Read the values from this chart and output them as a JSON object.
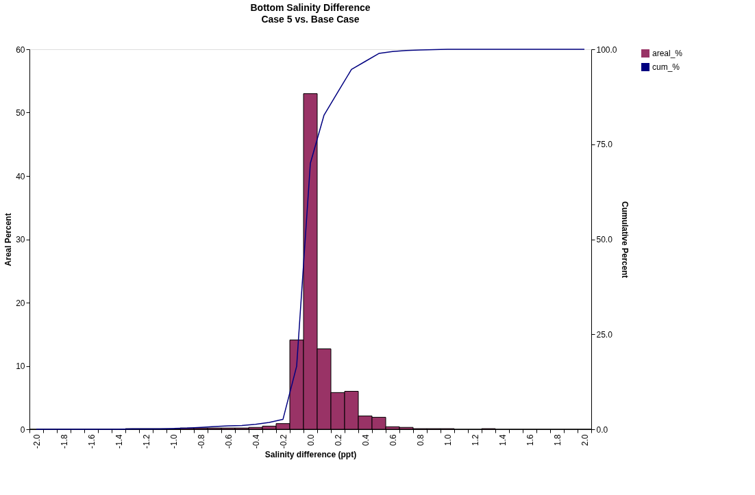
{
  "chart_data": {
    "type": "bar",
    "title": "Bottom Salinity Difference",
    "subtitle": "Case 5 vs. Base Case",
    "xlabel": "Salinity difference (ppt)",
    "ylabel": "Areal Percent",
    "y2label": "Cumulative Percent",
    "categories": [
      "-2.0",
      null,
      "-1.8",
      null,
      "-1.6",
      null,
      "-1.4",
      null,
      "-1.2",
      null,
      "-1.0",
      null,
      "-0.8",
      null,
      "-0.6",
      null,
      "-0.4",
      null,
      "-0.2",
      null,
      "0.0",
      null,
      "0.2",
      null,
      "0.4",
      null,
      "0.6",
      null,
      "0.8",
      null,
      "1.0",
      null,
      "1.2",
      null,
      "1.4",
      null,
      "1.6",
      null,
      "1.8",
      null,
      "2.0"
    ],
    "series": [
      {
        "name": "areal_%",
        "color": "#993366",
        "values": [
          0,
          0,
          0,
          0,
          0,
          0,
          0,
          0.1,
          0.1,
          0.1,
          0.1,
          0.2,
          0.2,
          0.2,
          0.2,
          0.2,
          0.3,
          0.5,
          0.9,
          14.1,
          53.0,
          12.7,
          5.8,
          6.0,
          2.1,
          1.9,
          0.4,
          0.3,
          0.1,
          0.1,
          0.1,
          0,
          0,
          0.1,
          0,
          0,
          0,
          0,
          0,
          0,
          0
        ]
      },
      {
        "name": "cum_%",
        "type": "line",
        "axis": "y2",
        "color": "#000080",
        "values": [
          0,
          0,
          0,
          0,
          0,
          0,
          0,
          0.1,
          0.1,
          0.1,
          0.2,
          0.3,
          0.5,
          0.7,
          0.9,
          1.0,
          1.3,
          1.8,
          2.6,
          16.6,
          70.0,
          82.7,
          88.7,
          94.7,
          96.8,
          98.9,
          99.4,
          99.7,
          99.8,
          99.9,
          100,
          100,
          100,
          100,
          100,
          100,
          100,
          100,
          100,
          100,
          100
        ]
      }
    ],
    "ylim": [
      0,
      60
    ],
    "yticks": [
      0,
      10,
      20,
      30,
      40,
      50,
      60
    ],
    "y2lim": [
      0,
      100
    ],
    "y2ticks": [
      {
        "value": 0,
        "label": "0.0"
      },
      {
        "value": 25,
        "label": "25.0"
      },
      {
        "value": 50,
        "label": "50.0"
      },
      {
        "value": 75,
        "label": "75.0"
      },
      {
        "value": 100,
        "label": "100.0"
      }
    ],
    "grid": false,
    "legend": "right"
  }
}
